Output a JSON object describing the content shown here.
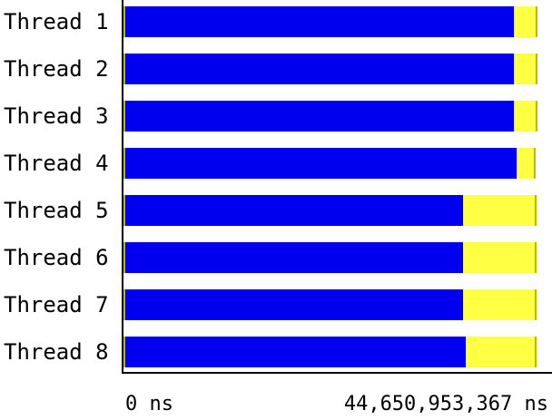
{
  "chart_data": {
    "type": "bar",
    "orientation": "horizontal",
    "stacked": true,
    "categories": [
      "Thread 1",
      "Thread 2",
      "Thread 3",
      "Thread 4",
      "Thread 5",
      "Thread 6",
      "Thread 7",
      "Thread 8"
    ],
    "series": [
      {
        "color": "#0000ee",
        "values": [
          41.14,
          41.14,
          41.14,
          41.42,
          35.77,
          35.77,
          35.77,
          36.05
        ]
      },
      {
        "color": "#ffff44",
        "values": [
          2.45,
          2.45,
          2.45,
          1.98,
          7.73,
          7.73,
          7.73,
          7.45
        ]
      }
    ],
    "unit_scale": "billions of ns",
    "xlim": [
      0,
      44.650953367
    ],
    "xtick_labels": [
      "0 ns",
      "44,650,953,367 ns"
    ],
    "grid": false,
    "legend": "none",
    "end_marker_color": "#b8b800"
  }
}
